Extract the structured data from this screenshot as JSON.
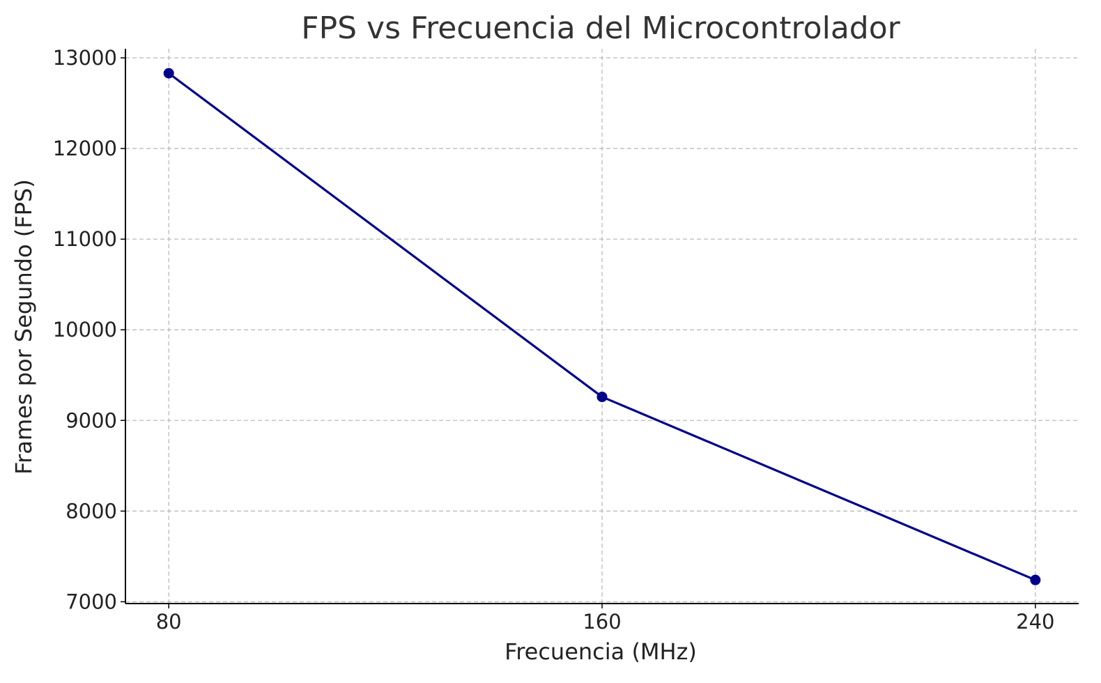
{
  "chart_data": {
    "type": "line",
    "title": "FPS vs Frecuencia del Microcontrolador",
    "xlabel": "Frecuencia (MHz)",
    "ylabel": "Frames por Segundo (FPS)",
    "x": [
      80,
      160,
      240
    ],
    "x_tick_labels": [
      "80",
      "160",
      "240"
    ],
    "y_ticks": [
      7000,
      8000,
      9000,
      10000,
      11000,
      12000,
      13000
    ],
    "y_tick_labels": [
      "7000",
      "8000",
      "9000",
      "10000",
      "11000",
      "12000",
      "13000"
    ],
    "xlim": [
      72,
      248
    ],
    "ylim": [
      6980,
      13100
    ],
    "grid": true,
    "series": [
      {
        "values": [
          12830,
          9260,
          7240
        ],
        "color": "#00008b",
        "marker": "circle"
      }
    ]
  }
}
